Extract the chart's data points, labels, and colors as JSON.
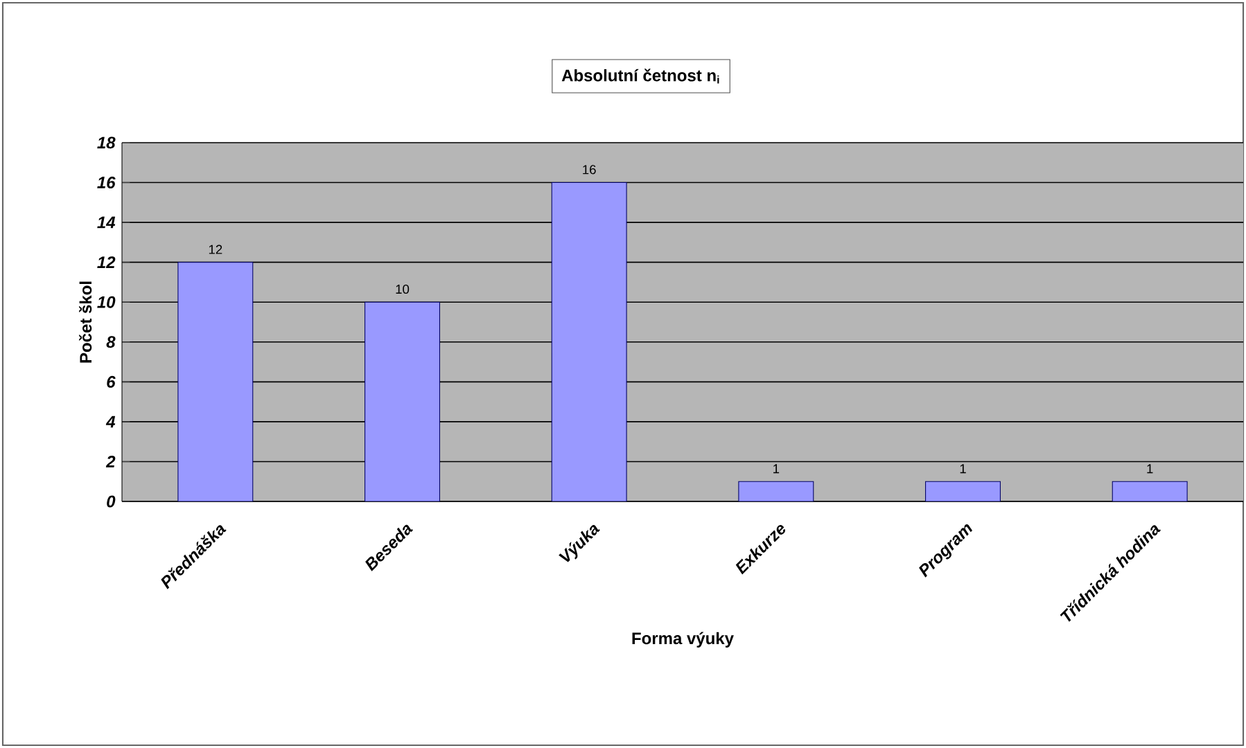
{
  "chart_data": {
    "type": "bar",
    "title": "Absolutní četnost n$_{i}$",
    "xlabel": "Forma výuky",
    "ylabel": "Počet škol",
    "categories": [
      "Přednáška",
      "Beseda",
      "Výuka",
      "Exkurze",
      "Program",
      "Třídnická hodina"
    ],
    "values": [
      12,
      10,
      16,
      1,
      1,
      1
    ],
    "color": "#9999ff",
    "ylim": [
      0,
      18
    ],
    "yticks": [
      0,
      2,
      4,
      6,
      8,
      10,
      12,
      14,
      16,
      18
    ],
    "grid": "y",
    "data_labels": true
  }
}
